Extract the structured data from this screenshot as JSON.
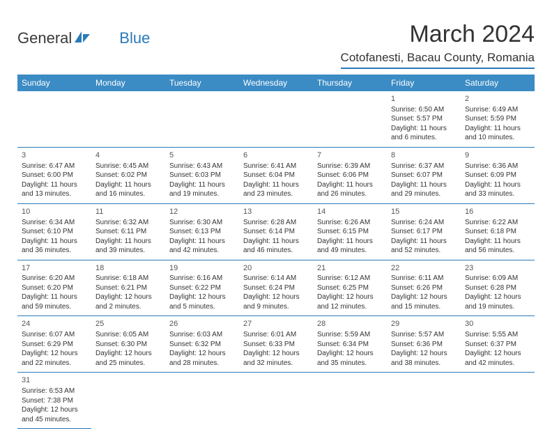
{
  "logo": {
    "general": "General",
    "blue": "Blue"
  },
  "title": "March 2024",
  "location": "Cotofanesti, Bacau County, Romania",
  "day_headers": [
    "Sunday",
    "Monday",
    "Tuesday",
    "Wednesday",
    "Thursday",
    "Friday",
    "Saturday"
  ],
  "colors": {
    "header_bg": "#3b8bc4",
    "accent": "#2a7ab8",
    "text": "#333333",
    "bg": "#ffffff"
  },
  "weeks": [
    [
      null,
      null,
      null,
      null,
      null,
      {
        "day": "1",
        "sunrise": "Sunrise: 6:50 AM",
        "sunset": "Sunset: 5:57 PM",
        "daylight": "Daylight: 11 hours and 6 minutes."
      },
      {
        "day": "2",
        "sunrise": "Sunrise: 6:49 AM",
        "sunset": "Sunset: 5:59 PM",
        "daylight": "Daylight: 11 hours and 10 minutes."
      }
    ],
    [
      {
        "day": "3",
        "sunrise": "Sunrise: 6:47 AM",
        "sunset": "Sunset: 6:00 PM",
        "daylight": "Daylight: 11 hours and 13 minutes."
      },
      {
        "day": "4",
        "sunrise": "Sunrise: 6:45 AM",
        "sunset": "Sunset: 6:02 PM",
        "daylight": "Daylight: 11 hours and 16 minutes."
      },
      {
        "day": "5",
        "sunrise": "Sunrise: 6:43 AM",
        "sunset": "Sunset: 6:03 PM",
        "daylight": "Daylight: 11 hours and 19 minutes."
      },
      {
        "day": "6",
        "sunrise": "Sunrise: 6:41 AM",
        "sunset": "Sunset: 6:04 PM",
        "daylight": "Daylight: 11 hours and 23 minutes."
      },
      {
        "day": "7",
        "sunrise": "Sunrise: 6:39 AM",
        "sunset": "Sunset: 6:06 PM",
        "daylight": "Daylight: 11 hours and 26 minutes."
      },
      {
        "day": "8",
        "sunrise": "Sunrise: 6:37 AM",
        "sunset": "Sunset: 6:07 PM",
        "daylight": "Daylight: 11 hours and 29 minutes."
      },
      {
        "day": "9",
        "sunrise": "Sunrise: 6:36 AM",
        "sunset": "Sunset: 6:09 PM",
        "daylight": "Daylight: 11 hours and 33 minutes."
      }
    ],
    [
      {
        "day": "10",
        "sunrise": "Sunrise: 6:34 AM",
        "sunset": "Sunset: 6:10 PM",
        "daylight": "Daylight: 11 hours and 36 minutes."
      },
      {
        "day": "11",
        "sunrise": "Sunrise: 6:32 AM",
        "sunset": "Sunset: 6:11 PM",
        "daylight": "Daylight: 11 hours and 39 minutes."
      },
      {
        "day": "12",
        "sunrise": "Sunrise: 6:30 AM",
        "sunset": "Sunset: 6:13 PM",
        "daylight": "Daylight: 11 hours and 42 minutes."
      },
      {
        "day": "13",
        "sunrise": "Sunrise: 6:28 AM",
        "sunset": "Sunset: 6:14 PM",
        "daylight": "Daylight: 11 hours and 46 minutes."
      },
      {
        "day": "14",
        "sunrise": "Sunrise: 6:26 AM",
        "sunset": "Sunset: 6:15 PM",
        "daylight": "Daylight: 11 hours and 49 minutes."
      },
      {
        "day": "15",
        "sunrise": "Sunrise: 6:24 AM",
        "sunset": "Sunset: 6:17 PM",
        "daylight": "Daylight: 11 hours and 52 minutes."
      },
      {
        "day": "16",
        "sunrise": "Sunrise: 6:22 AM",
        "sunset": "Sunset: 6:18 PM",
        "daylight": "Daylight: 11 hours and 56 minutes."
      }
    ],
    [
      {
        "day": "17",
        "sunrise": "Sunrise: 6:20 AM",
        "sunset": "Sunset: 6:20 PM",
        "daylight": "Daylight: 11 hours and 59 minutes."
      },
      {
        "day": "18",
        "sunrise": "Sunrise: 6:18 AM",
        "sunset": "Sunset: 6:21 PM",
        "daylight": "Daylight: 12 hours and 2 minutes."
      },
      {
        "day": "19",
        "sunrise": "Sunrise: 6:16 AM",
        "sunset": "Sunset: 6:22 PM",
        "daylight": "Daylight: 12 hours and 5 minutes."
      },
      {
        "day": "20",
        "sunrise": "Sunrise: 6:14 AM",
        "sunset": "Sunset: 6:24 PM",
        "daylight": "Daylight: 12 hours and 9 minutes."
      },
      {
        "day": "21",
        "sunrise": "Sunrise: 6:12 AM",
        "sunset": "Sunset: 6:25 PM",
        "daylight": "Daylight: 12 hours and 12 minutes."
      },
      {
        "day": "22",
        "sunrise": "Sunrise: 6:11 AM",
        "sunset": "Sunset: 6:26 PM",
        "daylight": "Daylight: 12 hours and 15 minutes."
      },
      {
        "day": "23",
        "sunrise": "Sunrise: 6:09 AM",
        "sunset": "Sunset: 6:28 PM",
        "daylight": "Daylight: 12 hours and 19 minutes."
      }
    ],
    [
      {
        "day": "24",
        "sunrise": "Sunrise: 6:07 AM",
        "sunset": "Sunset: 6:29 PM",
        "daylight": "Daylight: 12 hours and 22 minutes."
      },
      {
        "day": "25",
        "sunrise": "Sunrise: 6:05 AM",
        "sunset": "Sunset: 6:30 PM",
        "daylight": "Daylight: 12 hours and 25 minutes."
      },
      {
        "day": "26",
        "sunrise": "Sunrise: 6:03 AM",
        "sunset": "Sunset: 6:32 PM",
        "daylight": "Daylight: 12 hours and 28 minutes."
      },
      {
        "day": "27",
        "sunrise": "Sunrise: 6:01 AM",
        "sunset": "Sunset: 6:33 PM",
        "daylight": "Daylight: 12 hours and 32 minutes."
      },
      {
        "day": "28",
        "sunrise": "Sunrise: 5:59 AM",
        "sunset": "Sunset: 6:34 PM",
        "daylight": "Daylight: 12 hours and 35 minutes."
      },
      {
        "day": "29",
        "sunrise": "Sunrise: 5:57 AM",
        "sunset": "Sunset: 6:36 PM",
        "daylight": "Daylight: 12 hours and 38 minutes."
      },
      {
        "day": "30",
        "sunrise": "Sunrise: 5:55 AM",
        "sunset": "Sunset: 6:37 PM",
        "daylight": "Daylight: 12 hours and 42 minutes."
      }
    ],
    [
      {
        "day": "31",
        "sunrise": "Sunrise: 6:53 AM",
        "sunset": "Sunset: 7:38 PM",
        "daylight": "Daylight: 12 hours and 45 minutes."
      },
      null,
      null,
      null,
      null,
      null,
      null
    ]
  ]
}
